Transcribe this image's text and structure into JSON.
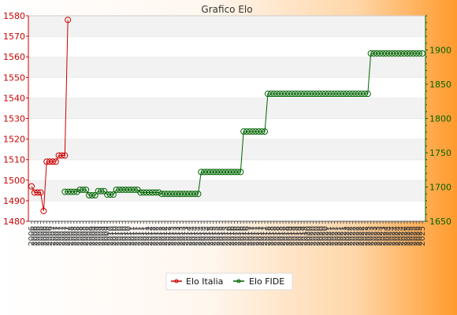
{
  "chart_data": {
    "type": "line",
    "title": "Grafico Elo",
    "y_left": {
      "ticks": [
        1480,
        1490,
        1500,
        1510,
        1520,
        1530,
        1540,
        1550,
        1560,
        1570,
        1580
      ],
      "ylim": [
        1480,
        1580
      ],
      "color": "#cc0000"
    },
    "y_right": {
      "ticks": [
        1650,
        1700,
        1750,
        1800,
        1850,
        1900
      ],
      "ylim": [
        1650,
        1950
      ],
      "color": "#006400"
    },
    "x": {
      "count": 130,
      "tick_labels": [
        "2006",
        "2007",
        "2008",
        "2009",
        "2010",
        "2011",
        "2012",
        "2013",
        "2014",
        "2015",
        "2016",
        "2017",
        "2018",
        "2019",
        "2020",
        "2021",
        "2022",
        "2023",
        "2024",
        "2025"
      ]
    },
    "grid": "horizontal bands",
    "legend_position": "bottom-center",
    "series": [
      {
        "name": "Elo Italia",
        "axis": "left",
        "color": "#cc0000",
        "points": [
          [
            0,
            1497
          ],
          [
            1,
            1494
          ],
          [
            2,
            1494
          ],
          [
            3,
            1494
          ],
          [
            4,
            1485
          ],
          [
            5,
            1509
          ],
          [
            6,
            1509
          ],
          [
            7,
            1509
          ],
          [
            8,
            1509
          ],
          [
            9,
            1512
          ],
          [
            10,
            1512
          ],
          [
            11,
            1512
          ],
          [
            12,
            1578
          ]
        ]
      },
      {
        "name": "Elo FIDE",
        "axis": "right",
        "color": "#006400",
        "segments": [
          [
            11,
            15,
            1693
          ],
          [
            16,
            18,
            1696
          ],
          [
            19,
            21,
            1688
          ],
          [
            22,
            24,
            1694
          ],
          [
            25,
            27,
            1689
          ],
          [
            28,
            35,
            1696
          ],
          [
            36,
            42,
            1692
          ],
          [
            43,
            55,
            1690
          ],
          [
            56,
            69,
            1722
          ],
          [
            70,
            77,
            1781
          ],
          [
            78,
            111,
            1836
          ],
          [
            112,
            129,
            1895
          ]
        ]
      }
    ]
  }
}
